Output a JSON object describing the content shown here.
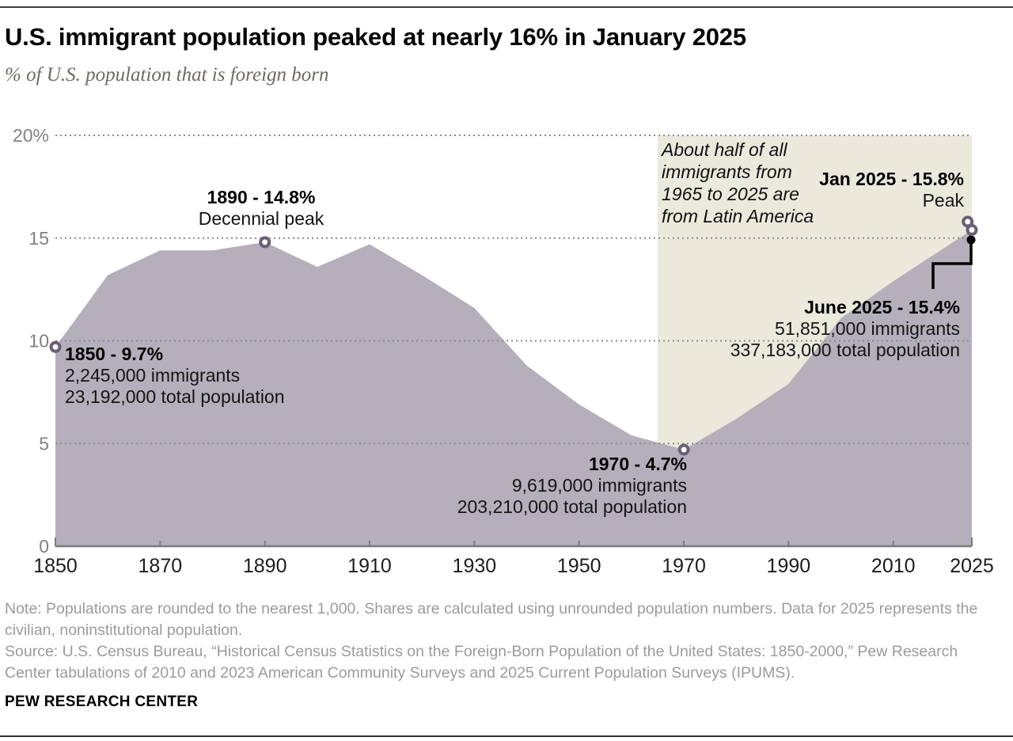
{
  "header": {
    "title": "U.S. immigrant population peaked at nearly 16% in January 2025",
    "subtitle": "% of U.S. population that is foreign born"
  },
  "chart_data": {
    "type": "area",
    "title": "U.S. immigrant population peaked at nearly 16% in January 2025",
    "subtitle": "% of U.S. population that is foreign born",
    "xlabel": "",
    "ylabel": "% of U.S. population that is foreign born",
    "xlim": [
      1850,
      2025.5
    ],
    "ylim": [
      0,
      20
    ],
    "grid": "horizontal dotted gridlines at 5, 10, 15, 20",
    "x_ticks": [
      {
        "year": 1850,
        "label": "1850"
      },
      {
        "year": 1870,
        "label": "1870"
      },
      {
        "year": 1890,
        "label": "1890"
      },
      {
        "year": 1910,
        "label": "1910"
      },
      {
        "year": 1930,
        "label": "1930"
      },
      {
        "year": 1950,
        "label": "1950"
      },
      {
        "year": 1970,
        "label": "1970"
      },
      {
        "year": 1990,
        "label": "1990"
      },
      {
        "year": 2010,
        "label": "2010"
      },
      {
        "year": 2025,
        "label": "2025"
      }
    ],
    "y_ticks": [
      {
        "value": 0,
        "label": "0"
      },
      {
        "value": 5,
        "label": "5"
      },
      {
        "value": 10,
        "label": "10"
      },
      {
        "value": 15,
        "label": "15"
      },
      {
        "value": 20,
        "label": "20%"
      }
    ],
    "series": [
      {
        "name": "% of U.S. population that is foreign born",
        "x": [
          1850,
          1860,
          1870,
          1880,
          1890,
          1900,
          1910,
          1920,
          1930,
          1940,
          1950,
          1960,
          1970,
          1980,
          1990,
          2000,
          2010,
          2025
        ],
        "values": [
          9.7,
          13.2,
          14.4,
          14.4,
          14.8,
          13.6,
          14.7,
          13.2,
          11.6,
          8.8,
          6.9,
          5.4,
          4.7,
          6.2,
          7.9,
          11.1,
          12.9,
          15.4
        ]
      }
    ],
    "markers": [
      {
        "label": "1850",
        "x": 1850,
        "value": 9.7,
        "style": "open"
      },
      {
        "label": "1890",
        "x": 1890,
        "value": 14.8,
        "style": "open"
      },
      {
        "label": "1970",
        "x": 1970,
        "value": 4.7,
        "style": "open"
      },
      {
        "label": "Jan 2025",
        "x": 2024.2,
        "value": 15.8,
        "style": "open"
      },
      {
        "label": "June 2025",
        "x": 2025,
        "value": 15.4,
        "style": "open"
      }
    ],
    "shaded_region": {
      "x_start": 1965,
      "x_end": 2025,
      "y_top": 20,
      "y_bottom": 0,
      "label": "About half of all immigrants from 1965 to 2025 are from Latin America"
    }
  },
  "annotations": {
    "a1890": {
      "title": "1890 - 14.8%",
      "line1": "Decennial peak"
    },
    "a1850": {
      "title": "1850 - 9.7%",
      "line1": "2,245,000 immigrants",
      "line2": "23,192,000 total population"
    },
    "a1970": {
      "title": "1970 - 4.7%",
      "line1": "9,619,000 immigrants",
      "line2": "203,210,000 total population"
    },
    "june2025": {
      "title": "June 2025 - 15.4%",
      "line1": "51,851,000 immigrants",
      "line2": "337,183,000 total population"
    },
    "jan2025": {
      "title": "Jan 2025 - 15.8%",
      "line1": "Peak"
    },
    "latam": {
      "text": "About half of all immigrants from 1965 to 2025 are from Latin America"
    }
  },
  "footer": {
    "note": "Note: Populations are rounded to the nearest 1,000. Shares are calculated using unrounded population numbers. Data for 2025 represents the civilian, noninstitutional population.",
    "source": "Source: U.S. Census Bureau, “Historical Census Statistics on the Foreign-Born Population of the United States: 1850-2000,” Pew Research Center tabulations of 2010 and 2023 American Community Surveys and 2025 Current Population Surveys (IPUMS).",
    "brand": "PEW RESEARCH CENTER"
  },
  "colors": {
    "area_fill": "#b5afbb",
    "shaded_region_fill": "#ebe9dc",
    "marker_ring": "#6a5f76",
    "marker_fill": "#ffffff",
    "gridline": "#8a8a8a",
    "axis_line": "#7b7b7b",
    "x_tick_label": "#1c1c1c",
    "y_tick_label": "#818181",
    "leader_line": "#000000",
    "note_text": "#9b9b9b"
  }
}
